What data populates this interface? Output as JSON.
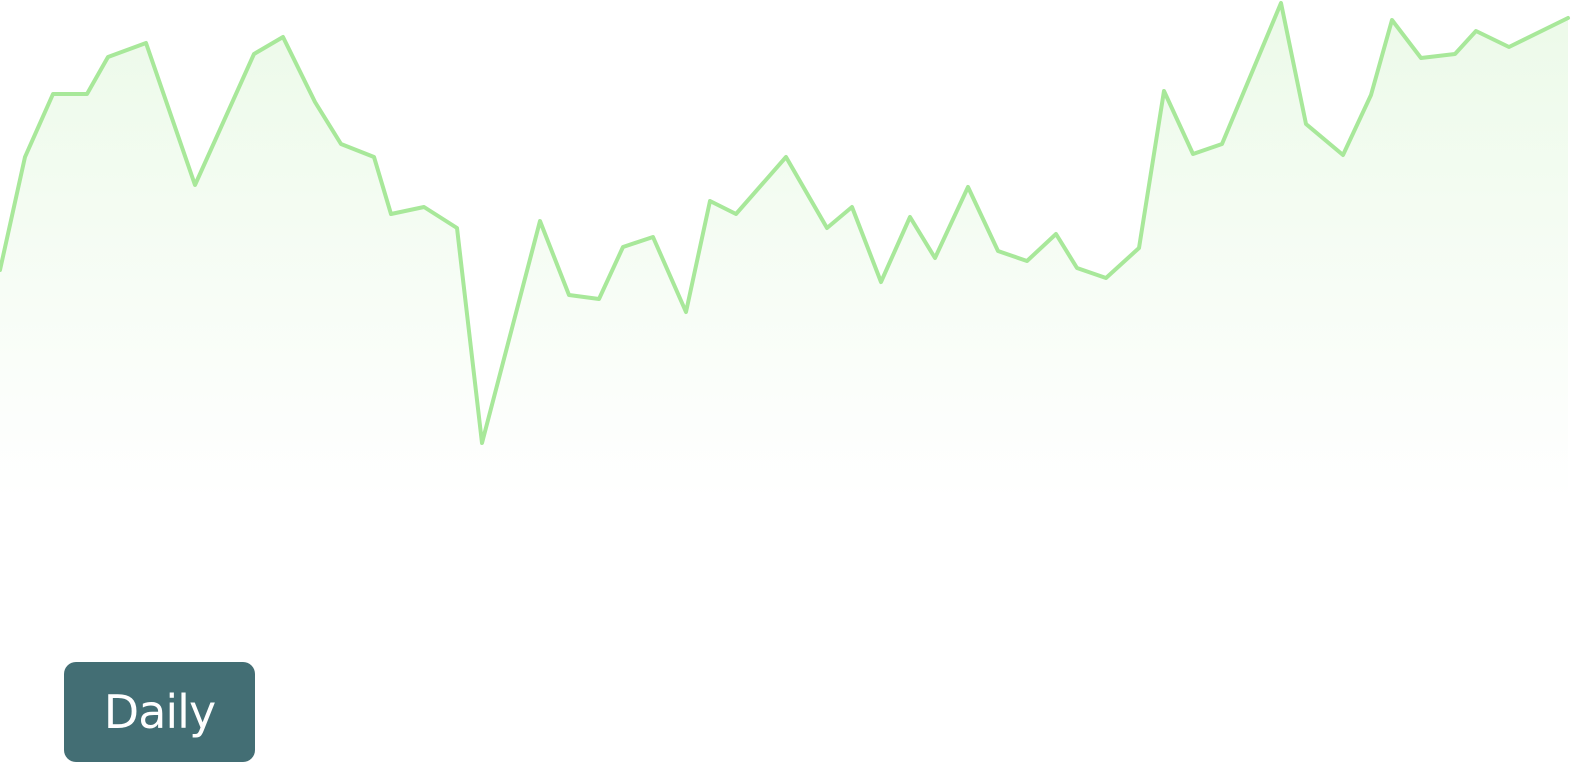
{
  "chart_data": {
    "type": "line",
    "x": [
      0,
      25,
      53,
      87,
      108,
      146,
      195,
      254,
      283,
      315,
      341,
      374,
      391,
      424,
      457,
      482,
      540,
      569,
      599,
      623,
      653,
      686,
      710,
      736,
      786,
      827,
      852,
      881,
      910,
      935,
      968,
      998,
      1027,
      1056,
      1077,
      1106,
      1139,
      1164,
      1193,
      1222,
      1281,
      1306,
      1343,
      1371,
      1392,
      1421,
      1455,
      1476,
      1509,
      1568
    ],
    "series": [
      {
        "color": "#a8e89a",
        "values": [
          230,
          343,
          406,
          406,
          443,
          457,
          315,
          446,
          463,
          398,
          356,
          343,
          286,
          293,
          272,
          57,
          279,
          205,
          201,
          253,
          263,
          188,
          299,
          286,
          343,
          272,
          293,
          218,
          283,
          242,
          313,
          249,
          239,
          266,
          232,
          222,
          252,
          409,
          346,
          356,
          497,
          376,
          345,
          405,
          480,
          442,
          446,
          469,
          453,
          482
        ]
      }
    ],
    "xlim": [
      0,
      1568
    ],
    "ylim": [
      0,
      500
    ]
  },
  "button": {
    "label": "Daily"
  }
}
